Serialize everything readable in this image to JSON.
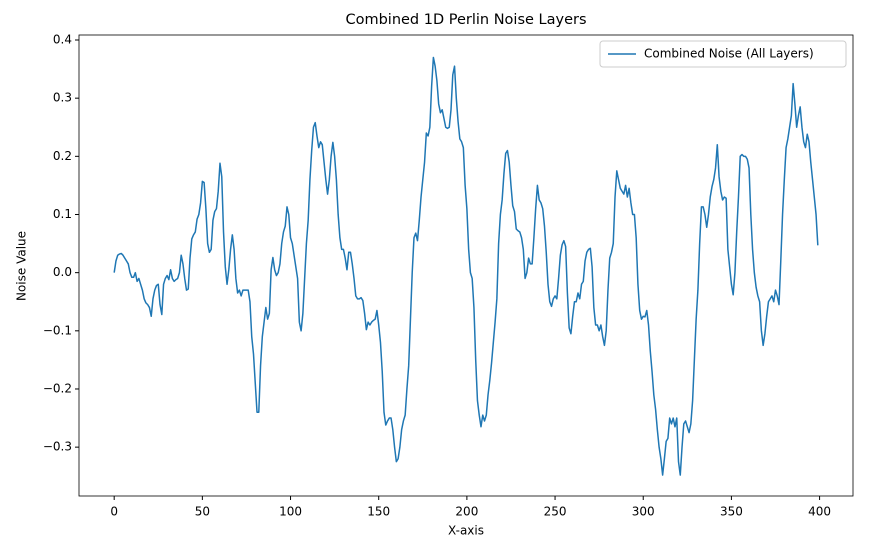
{
  "chart_data": {
    "type": "line",
    "title": "Combined 1D Perlin Noise Layers",
    "x_label": "X-axis",
    "y_label": "Noise Value",
    "x": [
      0,
      1,
      2,
      3,
      4,
      5,
      6,
      7,
      8,
      9,
      10,
      11,
      12,
      13,
      14,
      15,
      16,
      17,
      18,
      19,
      20,
      21,
      22,
      23,
      24,
      25,
      26,
      27,
      28,
      29,
      30,
      31,
      32,
      33,
      34,
      35,
      36,
      37,
      38,
      39,
      40,
      41,
      42,
      43,
      44,
      45,
      46,
      47,
      48,
      49,
      50,
      51,
      52,
      53,
      54,
      55,
      56,
      57,
      58,
      59,
      60,
      61,
      62,
      63,
      64,
      65,
      66,
      67,
      68,
      69,
      70,
      71,
      72,
      73,
      74,
      75,
      76,
      77,
      78,
      79,
      80,
      81,
      82,
      83,
      84,
      85,
      86,
      87,
      88,
      89,
      90,
      91,
      92,
      93,
      94,
      95,
      96,
      97,
      98,
      99,
      100,
      101,
      102,
      103,
      104,
      105,
      106,
      107,
      108,
      109,
      110,
      111,
      112,
      113,
      114,
      115,
      116,
      117,
      118,
      119,
      120,
      121,
      122,
      123,
      124,
      125,
      126,
      127,
      128,
      129,
      130,
      131,
      132,
      133,
      134,
      135,
      136,
      137,
      138,
      139,
      140,
      141,
      142,
      143,
      144,
      145,
      146,
      147,
      148,
      149,
      150,
      151,
      152,
      153,
      154,
      155,
      156,
      157,
      158,
      159,
      160,
      161,
      162,
      163,
      164,
      165,
      166,
      167,
      168,
      169,
      170,
      171,
      172,
      173,
      174,
      175,
      176,
      177,
      178,
      179,
      180,
      181,
      182,
      183,
      184,
      185,
      186,
      187,
      188,
      189,
      190,
      191,
      192,
      193,
      194,
      195,
      196,
      197,
      198,
      199,
      200,
      201,
      202,
      203,
      204,
      205,
      206,
      207,
      208,
      209,
      210,
      211,
      212,
      213,
      214,
      215,
      216,
      217,
      218,
      219,
      220,
      221,
      222,
      223,
      224,
      225,
      226,
      227,
      228,
      229,
      230,
      231,
      232,
      233,
      234,
      235,
      236,
      237,
      238,
      239,
      240,
      241,
      242,
      243,
      244,
      245,
      246,
      247,
      248,
      249,
      250,
      251,
      252,
      253,
      254,
      255,
      256,
      257,
      258,
      259,
      260,
      261,
      262,
      263,
      264,
      265,
      266,
      267,
      268,
      269,
      270,
      271,
      272,
      273,
      274,
      275,
      276,
      277,
      278,
      279,
      280,
      281,
      282,
      283,
      284,
      285,
      286,
      287,
      288,
      289,
      290,
      291,
      292,
      293,
      294,
      295,
      296,
      297,
      298,
      299,
      300,
      301,
      302,
      303,
      304,
      305,
      306,
      307,
      308,
      309,
      310,
      311,
      312,
      313,
      314,
      315,
      316,
      317,
      318,
      319,
      320,
      321,
      322,
      323,
      324,
      325,
      326,
      327,
      328,
      329,
      330,
      331,
      332,
      333,
      334,
      335,
      336,
      337,
      338,
      339,
      340,
      341,
      342,
      343,
      344,
      345,
      346,
      347,
      348,
      349,
      350,
      351,
      352,
      353,
      354,
      355,
      356,
      357,
      358,
      359,
      360,
      361,
      362,
      363,
      364,
      365,
      366,
      367,
      368,
      369,
      370,
      371,
      372,
      373,
      374,
      375,
      376,
      377,
      378,
      379,
      380,
      381,
      382,
      383,
      384,
      385,
      386,
      387,
      388,
      389,
      390,
      391,
      392,
      393,
      394,
      395,
      396,
      397,
      398,
      399
    ],
    "series": [
      {
        "name": "Combined Noise (All Layers)",
        "color": "#1f77b4",
        "values": [
          0.0,
          0.02,
          0.03,
          0.032,
          0.033,
          0.03,
          0.025,
          0.02,
          0.015,
          0.0,
          -0.008,
          -0.008,
          0.0,
          -0.015,
          -0.01,
          -0.02,
          -0.03,
          -0.045,
          -0.052,
          -0.055,
          -0.06,
          -0.075,
          -0.045,
          -0.03,
          -0.022,
          -0.02,
          -0.055,
          -0.072,
          -0.02,
          -0.01,
          -0.005,
          -0.012,
          0.005,
          -0.01,
          -0.015,
          -0.012,
          -0.01,
          0.0,
          0.03,
          0.015,
          -0.01,
          -0.03,
          -0.028,
          0.025,
          0.058,
          0.065,
          0.07,
          0.092,
          0.1,
          0.12,
          0.157,
          0.155,
          0.11,
          0.05,
          0.035,
          0.04,
          0.09,
          0.105,
          0.11,
          0.14,
          0.188,
          0.165,
          0.07,
          0.01,
          -0.02,
          0.005,
          0.04,
          0.065,
          0.04,
          -0.01,
          -0.035,
          -0.03,
          -0.04,
          -0.03,
          -0.03,
          -0.03,
          -0.03,
          -0.05,
          -0.11,
          -0.14,
          -0.19,
          -0.24,
          -0.24,
          -0.16,
          -0.11,
          -0.085,
          -0.06,
          -0.08,
          -0.07,
          0.005,
          0.026,
          0.005,
          -0.005,
          0.0,
          0.015,
          0.05,
          0.07,
          0.08,
          0.113,
          0.1,
          0.06,
          0.05,
          0.03,
          0.01,
          -0.01,
          -0.085,
          -0.1,
          -0.07,
          -0.01,
          0.05,
          0.09,
          0.16,
          0.21,
          0.25,
          0.258,
          0.235,
          0.215,
          0.225,
          0.22,
          0.19,
          0.16,
          0.135,
          0.16,
          0.2,
          0.224,
          0.2,
          0.16,
          0.1,
          0.06,
          0.04,
          0.04,
          0.025,
          0.005,
          0.035,
          0.035,
          0.015,
          -0.01,
          -0.04,
          -0.045,
          -0.045,
          -0.043,
          -0.048,
          -0.07,
          -0.098,
          -0.085,
          -0.09,
          -0.085,
          -0.082,
          -0.08,
          -0.065,
          -0.09,
          -0.12,
          -0.17,
          -0.24,
          -0.262,
          -0.255,
          -0.25,
          -0.25,
          -0.27,
          -0.3,
          -0.325,
          -0.32,
          -0.3,
          -0.27,
          -0.255,
          -0.245,
          -0.2,
          -0.16,
          -0.08,
          0.0,
          0.06,
          0.068,
          0.055,
          0.09,
          0.13,
          0.16,
          0.19,
          0.24,
          0.235,
          0.25,
          0.32,
          0.37,
          0.355,
          0.33,
          0.29,
          0.275,
          0.28,
          0.265,
          0.25,
          0.248,
          0.25,
          0.28,
          0.34,
          0.355,
          0.3,
          0.26,
          0.23,
          0.225,
          0.215,
          0.15,
          0.11,
          0.04,
          0.0,
          -0.01,
          -0.06,
          -0.15,
          -0.22,
          -0.245,
          -0.265,
          -0.245,
          -0.255,
          -0.245,
          -0.21,
          -0.185,
          -0.155,
          -0.12,
          -0.085,
          -0.045,
          0.05,
          0.1,
          0.125,
          0.17,
          0.205,
          0.21,
          0.19,
          0.15,
          0.115,
          0.105,
          0.075,
          0.072,
          0.07,
          0.06,
          0.04,
          -0.01,
          0.0,
          0.025,
          0.015,
          0.015,
          0.06,
          0.11,
          0.15,
          0.125,
          0.12,
          0.11,
          0.08,
          0.035,
          -0.02,
          -0.05,
          -0.058,
          -0.045,
          -0.04,
          -0.045,
          -0.01,
          0.03,
          0.048,
          0.055,
          0.045,
          -0.035,
          -0.095,
          -0.105,
          -0.075,
          -0.05,
          -0.05,
          -0.035,
          -0.045,
          -0.02,
          -0.015,
          0.02,
          0.035,
          0.04,
          0.042,
          0.01,
          -0.06,
          -0.09,
          -0.09,
          -0.1,
          -0.09,
          -0.11,
          -0.125,
          -0.1,
          -0.03,
          0.025,
          0.035,
          0.05,
          0.13,
          0.175,
          0.16,
          0.145,
          0.14,
          0.135,
          0.15,
          0.13,
          0.145,
          0.12,
          0.1,
          0.1,
          0.06,
          -0.02,
          -0.065,
          -0.08,
          -0.075,
          -0.076,
          -0.065,
          -0.09,
          -0.135,
          -0.17,
          -0.21,
          -0.235,
          -0.27,
          -0.3,
          -0.32,
          -0.348,
          -0.32,
          -0.29,
          -0.285,
          -0.25,
          -0.26,
          -0.25,
          -0.265,
          -0.25,
          -0.325,
          -0.348,
          -0.3,
          -0.26,
          -0.255,
          -0.265,
          -0.275,
          -0.26,
          -0.22,
          -0.15,
          -0.08,
          -0.03,
          0.05,
          0.113,
          0.113,
          0.1,
          0.078,
          0.1,
          0.13,
          0.148,
          0.16,
          0.18,
          0.22,
          0.165,
          0.14,
          0.125,
          0.13,
          0.128,
          0.04,
          0.01,
          -0.02,
          -0.038,
          0.0,
          0.07,
          0.13,
          0.2,
          0.203,
          0.2,
          0.2,
          0.195,
          0.18,
          0.1,
          0.04,
          0.0,
          -0.025,
          -0.04,
          -0.05,
          -0.1,
          -0.125,
          -0.105,
          -0.075,
          -0.05,
          -0.045,
          -0.04,
          -0.05,
          -0.03,
          -0.04,
          -0.055,
          0.02,
          0.1,
          0.16,
          0.215,
          0.23,
          0.25,
          0.27,
          0.325,
          0.29,
          0.25,
          0.27,
          0.285,
          0.25,
          0.225,
          0.215,
          0.238,
          0.225,
          0.19,
          0.16,
          0.13,
          0.1,
          0.047
        ]
      }
    ],
    "xlim": [
      -19.95,
      418.95
    ],
    "xticks": [
      0,
      50,
      100,
      150,
      200,
      250,
      300,
      350,
      400
    ],
    "ylim": [
      -0.384,
      0.4086
    ],
    "yticks": [
      {
        "value": -0.3,
        "label": "−0.3"
      },
      {
        "value": -0.2,
        "label": "−0.2"
      },
      {
        "value": -0.1,
        "label": "−0.1"
      },
      {
        "value": 0,
        "label": "0.0"
      },
      0.1,
      0.2,
      0.3,
      0.4
    ],
    "legend": "upper right"
  }
}
